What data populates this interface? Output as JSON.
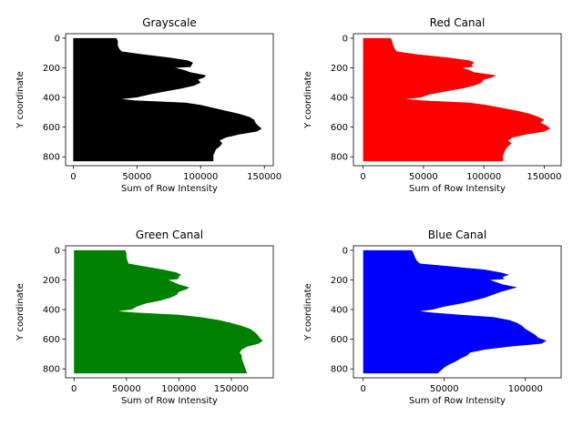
{
  "chart_data": [
    {
      "type": "area",
      "title": "Grayscale",
      "xlabel": "Sum of Row Intensity",
      "ylabel": "Y coordinate",
      "color": "#000000",
      "xlim": [
        -6000,
        157000
      ],
      "ylim": [
        860,
        -30
      ],
      "xticks": [
        0,
        50000,
        100000,
        150000
      ],
      "xtick_labels": [
        "0",
        "50000",
        "100000",
        "150000"
      ],
      "yticks": [
        0,
        200,
        400,
        600,
        800
      ],
      "ytick_labels": [
        "0",
        "200",
        "400",
        "600",
        "800"
      ],
      "y": [
        0,
        20,
        50,
        70,
        90,
        110,
        130,
        150,
        165,
        180,
        195,
        200,
        215,
        230,
        250,
        265,
        280,
        300,
        320,
        340,
        360,
        380,
        400,
        410,
        420,
        435,
        450,
        470,
        490,
        510,
        530,
        550,
        570,
        590,
        610,
        630,
        650,
        670,
        690,
        710,
        730,
        750,
        770,
        790,
        810,
        830
      ],
      "values": [
        34000,
        35000,
        35000,
        36000,
        38000,
        55000,
        75000,
        90000,
        94000,
        93000,
        92000,
        80000,
        87000,
        92000,
        104000,
        103000,
        98000,
        100000,
        95000,
        85000,
        72000,
        60000,
        50000,
        38000,
        48000,
        88000,
        100000,
        110000,
        120000,
        130000,
        138000,
        142000,
        143000,
        145000,
        148000,
        144000,
        130000,
        120000,
        115000,
        117000,
        115000,
        112000,
        111000,
        110000,
        110000,
        110000
      ]
    },
    {
      "type": "area",
      "title": "Red Canal",
      "xlabel": "Sum of Row Intensity",
      "ylabel": "Y coordinate",
      "color": "#ff0000",
      "xlim": [
        -8000,
        164000
      ],
      "ylim": [
        860,
        -30
      ],
      "xticks": [
        0,
        50000,
        100000,
        150000
      ],
      "xtick_labels": [
        "0",
        "50000",
        "100000",
        "150000"
      ],
      "yticks": [
        0,
        200,
        400,
        600,
        800
      ],
      "ytick_labels": [
        "0",
        "200",
        "400",
        "600",
        "800"
      ],
      "y": [
        0,
        20,
        50,
        70,
        90,
        110,
        130,
        150,
        165,
        180,
        195,
        200,
        215,
        230,
        250,
        265,
        280,
        300,
        320,
        340,
        360,
        380,
        400,
        410,
        420,
        435,
        450,
        470,
        490,
        510,
        530,
        550,
        570,
        590,
        610,
        630,
        650,
        670,
        690,
        710,
        730,
        750,
        770,
        790,
        810,
        830
      ],
      "values": [
        23000,
        24000,
        25000,
        26000,
        28000,
        45000,
        70000,
        88000,
        92000,
        90000,
        91000,
        82000,
        88000,
        92000,
        110000,
        107000,
        100000,
        98000,
        92000,
        82000,
        68000,
        55000,
        48000,
        36000,
        48000,
        88000,
        102000,
        115000,
        128000,
        138000,
        145000,
        150000,
        147000,
        152000,
        155000,
        150000,
        135000,
        124000,
        120000,
        123000,
        120000,
        118000,
        117000,
        116000,
        116000,
        116000
      ]
    },
    {
      "type": "area",
      "title": "Green Canal",
      "xlabel": "Sum of Row Intensity",
      "ylabel": "Y coordinate",
      "color": "#008000",
      "xlim": [
        -8000,
        190000
      ],
      "ylim": [
        860,
        -30
      ],
      "xticks": [
        0,
        50000,
        100000,
        150000
      ],
      "xtick_labels": [
        "0",
        "50000",
        "100000",
        "150000"
      ],
      "yticks": [
        0,
        200,
        400,
        600,
        800
      ],
      "ytick_labels": [
        "0",
        "200",
        "400",
        "600",
        "800"
      ],
      "y": [
        0,
        20,
        50,
        70,
        90,
        110,
        130,
        150,
        165,
        180,
        195,
        200,
        215,
        230,
        250,
        265,
        280,
        300,
        320,
        340,
        360,
        380,
        400,
        410,
        420,
        435,
        450,
        470,
        490,
        510,
        530,
        550,
        570,
        590,
        610,
        630,
        650,
        670,
        690,
        710,
        730,
        750,
        770,
        790,
        810,
        830
      ],
      "values": [
        49000,
        50000,
        50000,
        51000,
        52000,
        68000,
        85000,
        98000,
        102000,
        100000,
        99000,
        90000,
        95000,
        100000,
        110000,
        107000,
        100000,
        98000,
        92000,
        82000,
        68000,
        60000,
        55000,
        42000,
        58000,
        100000,
        120000,
        138000,
        150000,
        160000,
        168000,
        172000,
        175000,
        177000,
        180000,
        176000,
        165000,
        160000,
        158000,
        160000,
        160000,
        161000,
        162000,
        163000,
        164000,
        165000
      ]
    },
    {
      "type": "area",
      "title": "Blue Canal",
      "xlabel": "Sum of Row Intensity",
      "ylabel": "Y coordinate",
      "color": "#0000ff",
      "xlim": [
        -6000,
        122000
      ],
      "ylim": [
        860,
        -30
      ],
      "xticks": [
        0,
        50000,
        100000
      ],
      "xtick_labels": [
        "0",
        "50000",
        "100000"
      ],
      "yticks": [
        0,
        200,
        400,
        600,
        800
      ],
      "ytick_labels": [
        "0",
        "200",
        "400",
        "600",
        "800"
      ],
      "y": [
        0,
        20,
        50,
        70,
        90,
        110,
        130,
        150,
        165,
        180,
        195,
        200,
        215,
        230,
        250,
        265,
        280,
        300,
        320,
        340,
        360,
        380,
        400,
        410,
        420,
        435,
        450,
        470,
        490,
        510,
        530,
        550,
        570,
        590,
        610,
        630,
        650,
        670,
        690,
        710,
        730,
        750,
        770,
        790,
        810,
        830
      ],
      "values": [
        30000,
        31000,
        32000,
        33000,
        35000,
        55000,
        75000,
        85000,
        90000,
        86000,
        87000,
        78000,
        82000,
        86000,
        95000,
        90000,
        85000,
        80000,
        75000,
        68000,
        60000,
        50000,
        43000,
        35000,
        42000,
        60000,
        80000,
        90000,
        95000,
        98000,
        100000,
        103000,
        106000,
        108000,
        113000,
        110000,
        90000,
        75000,
        66000,
        64000,
        60000,
        57000,
        53000,
        50000,
        48000,
        46000
      ]
    }
  ]
}
